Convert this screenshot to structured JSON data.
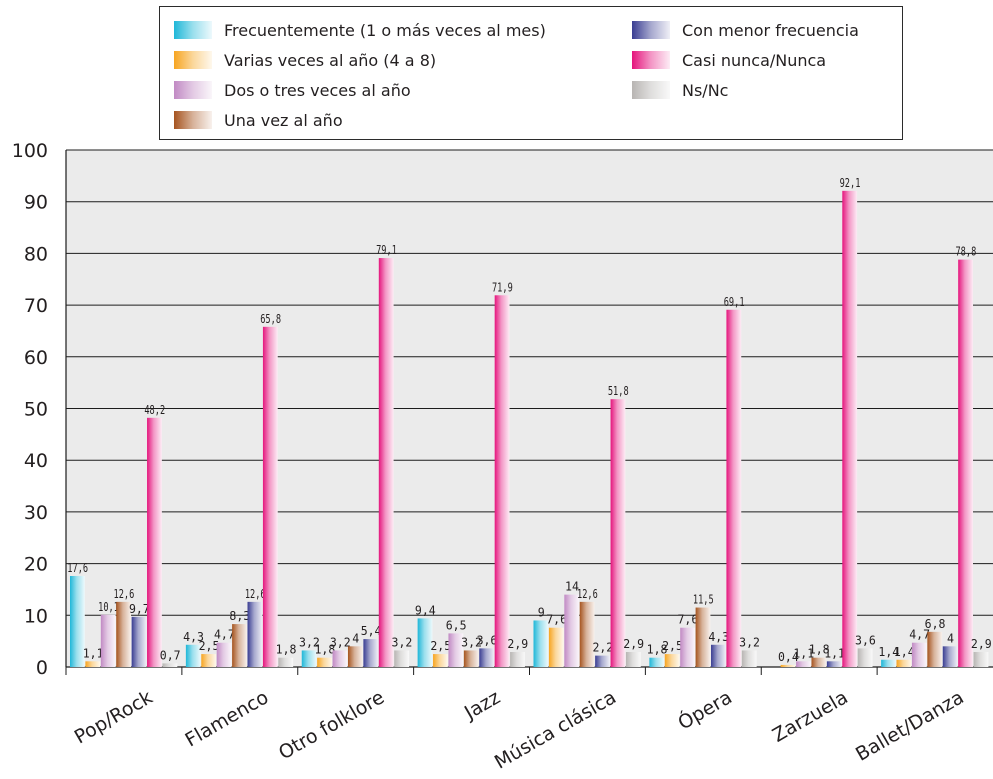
{
  "chart_data": {
    "type": "bar",
    "categories": [
      "Pop/Rock",
      "Flamenco",
      "Otro folklore",
      "Jazz",
      "Música clásica",
      "Ópera",
      "Zarzuela",
      "Ballet/Danza"
    ],
    "series": [
      {
        "name": "Frecuentemente (1 o más veces al mes)",
        "values": [
          17.6,
          4.3,
          3.2,
          9.4,
          9,
          1.8,
          null,
          1.4
        ],
        "labels": [
          "17,6",
          "4,3",
          "3,2",
          "9,4",
          "9",
          "1,8",
          "",
          "1,4"
        ],
        "color": "#1fb7d8"
      },
      {
        "name": "Varias veces al año (4 a 8)",
        "values": [
          1.1,
          2.5,
          1.8,
          2.5,
          7.6,
          2.5,
          0.4,
          1.4
        ],
        "labels": [
          "1,1",
          "2,5",
          "1,8",
          "2,5",
          "7,6",
          "2,5",
          "0,4",
          "1,4"
        ],
        "color": "#f7a521"
      },
      {
        "name": "Dos o tres veces al año",
        "values": [
          10.1,
          4.7,
          3.2,
          6.5,
          14,
          7.6,
          1.1,
          4.7
        ],
        "labels": [
          "10,1",
          "4,7",
          "3,2",
          "6,5",
          "14",
          "7,6",
          "1,1",
          "4,7"
        ],
        "color": "#c18ac4"
      },
      {
        "name": "Una vez al año",
        "values": [
          12.6,
          8.3,
          4,
          3.2,
          12.6,
          11.5,
          1.8,
          6.8
        ],
        "labels": [
          "12,6",
          "8,3",
          "4",
          "3,2",
          "12,6",
          "11,5",
          "1,8",
          "6,8"
        ],
        "color": "#a6541f"
      },
      {
        "name": "Con menor frecuencia",
        "values": [
          9.7,
          12.6,
          5.4,
          3.6,
          2.2,
          4.3,
          1.1,
          4
        ],
        "labels": [
          "9,7",
          "12,6",
          "5,4",
          "3,6",
          "2,2",
          "4,3",
          "1,1",
          "4"
        ],
        "color": "#3a3d92"
      },
      {
        "name": "Casi nunca/Nunca",
        "values": [
          48.2,
          65.8,
          79.1,
          71.9,
          51.8,
          69.1,
          92.1,
          78.8
        ],
        "labels": [
          "48,2",
          "65,8",
          "79,1",
          "71,9",
          "51,8",
          "69,1",
          "92,1",
          "78,8"
        ],
        "color": "#e5157d"
      },
      {
        "name": "Ns/Nc",
        "values": [
          0.7,
          1.8,
          3.2,
          2.9,
          2.9,
          3.2,
          3.6,
          2.9
        ],
        "labels": [
          "0,7",
          "1,8",
          "3,2",
          "2,9",
          "2,9",
          "3,2",
          "3,6",
          "2,9"
        ],
        "color": "#b8b5b3"
      }
    ],
    "title": "",
    "xlabel": "",
    "ylabel": "",
    "ylim": [
      0,
      100
    ],
    "yticks": [
      0,
      10,
      20,
      30,
      40,
      50,
      60,
      70,
      80,
      90,
      100
    ],
    "grid": true,
    "legend_position": "top"
  }
}
